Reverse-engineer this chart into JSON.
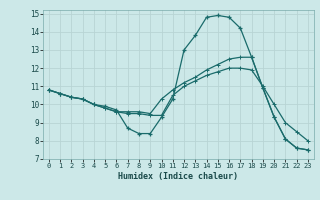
{
  "xlabel": "Humidex (Indice chaleur)",
  "bg_color": "#cce8e8",
  "grid_color": "#b8d4d4",
  "line_color": "#1a6b6b",
  "xlim": [
    -0.5,
    23.5
  ],
  "ylim": [
    7,
    15.2
  ],
  "xticks": [
    0,
    1,
    2,
    3,
    4,
    5,
    6,
    7,
    8,
    9,
    10,
    11,
    12,
    13,
    14,
    15,
    16,
    17,
    18,
    19,
    20,
    21,
    22,
    23
  ],
  "yticks": [
    7,
    8,
    9,
    10,
    11,
    12,
    13,
    14,
    15
  ],
  "series1_x": [
    0,
    1,
    2,
    3,
    4,
    5,
    6,
    7,
    8,
    9,
    10,
    11,
    12,
    13,
    14,
    15,
    16,
    17,
    18,
    19,
    20,
    21,
    22,
    23
  ],
  "series1_y": [
    10.8,
    10.6,
    10.4,
    10.3,
    10.0,
    9.9,
    9.7,
    8.7,
    8.4,
    8.4,
    9.3,
    10.3,
    13.0,
    13.8,
    14.8,
    14.9,
    14.8,
    14.2,
    12.6,
    10.9,
    9.3,
    8.1,
    7.6,
    7.5
  ],
  "series2_x": [
    0,
    1,
    2,
    3,
    4,
    5,
    6,
    7,
    8,
    9,
    10,
    11,
    12,
    13,
    14,
    15,
    16,
    17,
    18,
    19,
    20,
    21,
    22,
    23
  ],
  "series2_y": [
    10.8,
    10.6,
    10.4,
    10.3,
    10.0,
    9.8,
    9.6,
    9.6,
    9.6,
    9.5,
    10.3,
    10.8,
    11.2,
    11.5,
    11.9,
    12.2,
    12.5,
    12.6,
    12.6,
    10.9,
    9.3,
    8.1,
    7.6,
    7.5
  ],
  "series3_x": [
    0,
    1,
    2,
    3,
    4,
    5,
    6,
    7,
    8,
    9,
    10,
    11,
    12,
    13,
    14,
    15,
    16,
    17,
    18,
    19,
    20,
    21,
    22,
    23
  ],
  "series3_y": [
    10.8,
    10.6,
    10.4,
    10.3,
    10.0,
    9.8,
    9.6,
    9.5,
    9.5,
    9.4,
    9.4,
    10.5,
    11.0,
    11.3,
    11.6,
    11.8,
    12.0,
    12.0,
    11.9,
    11.0,
    10.0,
    9.0,
    8.5,
    8.0
  ]
}
